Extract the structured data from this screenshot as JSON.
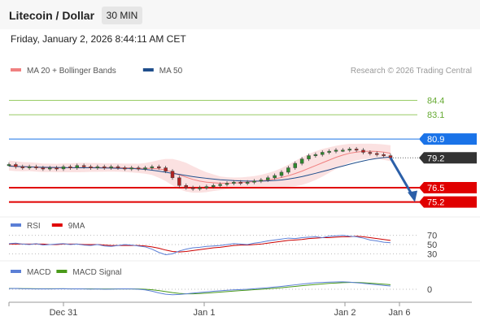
{
  "header": {
    "title": "Litecoin / Dollar",
    "timeframe": "30 MIN"
  },
  "timestamp": "Friday, January 2, 2026 8:44:11 AM CET",
  "credit": "Research © 2026 Trading Central",
  "chart_data": [
    {
      "type": "line",
      "panel": "price",
      "legend": [
        {
          "name": "MA 20 + Bollinger Bands",
          "color": "#f08080"
        },
        {
          "name": "MA 50",
          "color": "#1f4e8c"
        }
      ],
      "x_ticks": [
        "Dec 31",
        "Jan 1",
        "Jan 2",
        "Jan 6"
      ],
      "x_tick_positions": [
        0.21,
        0.755,
        1.28,
        1.48
      ],
      "y_range": [
        74.0,
        86.5
      ],
      "levels": [
        {
          "label": "84.4",
          "value": 84.4,
          "kind": "resistance-line",
          "color": "#99cc66"
        },
        {
          "label": "83.1",
          "value": 83.1,
          "kind": "resistance-line",
          "color": "#99cc66"
        },
        {
          "label": "80.9",
          "value": 80.9,
          "kind": "pivot",
          "color": "#1a73e8"
        },
        {
          "label": "79.2",
          "value": 79.2,
          "kind": "last-price",
          "color": "#333333"
        },
        {
          "label": "76.5",
          "value": 76.5,
          "kind": "support",
          "color": "#e00000"
        },
        {
          "label": "75.2",
          "value": 75.2,
          "kind": "support",
          "color": "#e00000"
        }
      ],
      "price": [
        78.6,
        78.4,
        78.3,
        78.4,
        78.3,
        78.2,
        78.3,
        78.2,
        78.4,
        78.3,
        78.5,
        78.4,
        78.3,
        78.4,
        78.3,
        78.4,
        78.3,
        78.2,
        78.3,
        78.2,
        78.3,
        78.4,
        78.3,
        78.0,
        77.4,
        76.7,
        76.5,
        76.4,
        76.5,
        76.6,
        76.7,
        76.8,
        76.9,
        77.0,
        76.9,
        77.0,
        77.1,
        77.2,
        77.4,
        77.6,
        77.9,
        78.3,
        78.7,
        79.1,
        79.4,
        79.5,
        79.7,
        79.8,
        79.9,
        79.9,
        80.0,
        79.9,
        79.7,
        79.6,
        79.5,
        79.4,
        79.2
      ],
      "ma20": [
        78.5,
        78.45,
        78.4,
        78.4,
        78.35,
        78.3,
        78.3,
        78.28,
        78.3,
        78.3,
        78.32,
        78.33,
        78.33,
        78.33,
        78.32,
        78.33,
        78.32,
        78.3,
        78.28,
        78.25,
        78.25,
        78.25,
        78.2,
        78.1,
        77.9,
        77.65,
        77.45,
        77.25,
        77.1,
        77.0,
        76.95,
        76.9,
        76.9,
        76.92,
        76.95,
        77.0,
        77.05,
        77.12,
        77.2,
        77.3,
        77.42,
        77.58,
        77.78,
        78.0,
        78.25,
        78.5,
        78.75,
        79.0,
        79.25,
        79.45,
        79.62,
        79.72,
        79.78,
        79.8,
        79.78,
        79.72,
        79.62
      ],
      "ma50": [
        78.45,
        78.42,
        78.4,
        78.38,
        78.36,
        78.35,
        78.34,
        78.33,
        78.32,
        78.31,
        78.3,
        78.3,
        78.3,
        78.29,
        78.28,
        78.27,
        78.26,
        78.25,
        78.24,
        78.2,
        78.15,
        78.08,
        78.0,
        77.9,
        77.8,
        77.7,
        77.6,
        77.5,
        77.42,
        77.35,
        77.28,
        77.22,
        77.18,
        77.14,
        77.12,
        77.1,
        77.1,
        77.1,
        77.12,
        77.15,
        77.2,
        77.28,
        77.38,
        77.5,
        77.65,
        77.8,
        77.96,
        78.12,
        78.3,
        78.46,
        78.62,
        78.78,
        78.92,
        79.05,
        79.15,
        79.22,
        79.28
      ],
      "bb_width": [
        0.45,
        0.45,
        0.42,
        0.4,
        0.4,
        0.38,
        0.38,
        0.38,
        0.4,
        0.4,
        0.42,
        0.42,
        0.4,
        0.4,
        0.38,
        0.38,
        0.38,
        0.38,
        0.4,
        0.42,
        0.48,
        0.6,
        0.8,
        1.0,
        1.2,
        1.3,
        1.3,
        1.2,
        1.05,
        0.9,
        0.75,
        0.62,
        0.55,
        0.5,
        0.48,
        0.48,
        0.5,
        0.55,
        0.62,
        0.72,
        0.85,
        1.0,
        1.15,
        1.25,
        1.3,
        1.3,
        1.25,
        1.15,
        1.05,
        0.95,
        0.85,
        0.75,
        0.7,
        0.68,
        0.68,
        0.7,
        0.72
      ],
      "forecast_arrow": {
        "from": 79.2,
        "to": 75.2
      }
    },
    {
      "type": "line",
      "panel": "rsi",
      "legend": [
        {
          "name": "RSI",
          "color": "#5b7fd6"
        },
        {
          "name": "9MA",
          "color": "#e00000"
        }
      ],
      "y_ticks": [
        "70",
        "50",
        "30"
      ],
      "y_range": [
        20,
        80
      ],
      "rsi": [
        52,
        53,
        51,
        50,
        52,
        49,
        50,
        51,
        52,
        50,
        51,
        49,
        48,
        50,
        47,
        46,
        48,
        50,
        49,
        47,
        45,
        40,
        33,
        28,
        30,
        36,
        40,
        43,
        44,
        46,
        47,
        48,
        50,
        52,
        51,
        50,
        53,
        55,
        58,
        60,
        62,
        64,
        63,
        65,
        66,
        67,
        65,
        68,
        69,
        70,
        68,
        67,
        64,
        60,
        58,
        55,
        54
      ],
      "ma9": [
        51,
        51,
        51,
        51,
        51,
        51,
        50,
        50,
        51,
        51,
        51,
        50,
        50,
        50,
        49,
        48,
        48,
        48,
        48,
        48,
        47,
        45,
        42,
        38,
        35,
        34,
        35,
        37,
        39,
        41,
        43,
        44,
        46,
        48,
        49,
        49,
        50,
        51,
        53,
        55,
        57,
        59,
        60,
        61,
        63,
        64,
        65,
        65,
        66,
        67,
        67,
        68,
        67,
        65,
        63,
        61,
        59
      ]
    },
    {
      "type": "line",
      "panel": "macd",
      "legend": [
        {
          "name": "MACD",
          "color": "#5b7fd6"
        },
        {
          "name": "MACD Signal",
          "color": "#4a9a1a"
        }
      ],
      "y_ticks": [
        "0"
      ],
      "y_range": [
        -1.0,
        1.0
      ],
      "macd": [
        0.05,
        0.06,
        0.04,
        0.03,
        0.02,
        0.03,
        0.02,
        0.03,
        0.04,
        0.02,
        0.03,
        0.02,
        0.01,
        0.02,
        0.0,
        0.01,
        0.02,
        0.03,
        0.02,
        0.0,
        -0.05,
        -0.15,
        -0.28,
        -0.38,
        -0.42,
        -0.4,
        -0.35,
        -0.3,
        -0.25,
        -0.2,
        -0.16,
        -0.12,
        -0.08,
        -0.05,
        -0.02,
        0.0,
        0.04,
        0.08,
        0.12,
        0.17,
        0.22,
        0.28,
        0.34,
        0.4,
        0.45,
        0.5,
        0.52,
        0.55,
        0.56,
        0.57,
        0.55,
        0.5,
        0.45,
        0.4,
        0.35,
        0.3,
        0.25
      ],
      "signal": [
        0.06,
        0.06,
        0.05,
        0.05,
        0.04,
        0.04,
        0.04,
        0.04,
        0.04,
        0.03,
        0.03,
        0.03,
        0.03,
        0.02,
        0.02,
        0.02,
        0.02,
        0.02,
        0.02,
        0.02,
        0.0,
        -0.04,
        -0.1,
        -0.18,
        -0.26,
        -0.32,
        -0.35,
        -0.35,
        -0.33,
        -0.3,
        -0.26,
        -0.22,
        -0.18,
        -0.14,
        -0.1,
        -0.07,
        -0.03,
        0.0,
        0.04,
        0.08,
        0.12,
        0.17,
        0.22,
        0.27,
        0.32,
        0.37,
        0.41,
        0.45,
        0.48,
        0.51,
        0.52,
        0.52,
        0.5,
        0.47,
        0.43,
        0.39,
        0.35
      ]
    }
  ]
}
